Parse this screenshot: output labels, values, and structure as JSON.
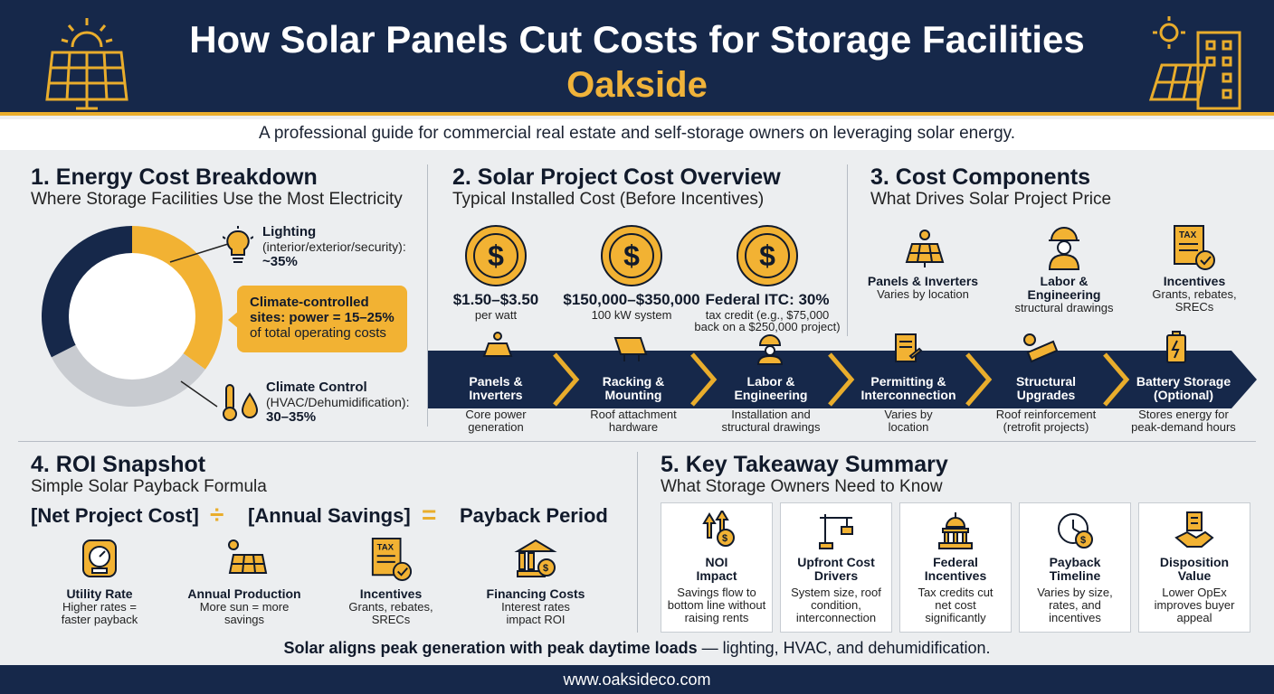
{
  "header": {
    "title": "How Solar Panels Cut Costs for Storage Facilities",
    "brand": "Oakside"
  },
  "tagline": "A professional guide for commercial real estate and self-storage owners on leveraging solar energy.",
  "section1": {
    "title": "1. Energy Cost Breakdown",
    "subtitle": "Where Storage Facilities Use the Most Electricity",
    "lighting": {
      "label": "Lighting",
      "detail": "(interior/exterior/security):",
      "value": "~35%"
    },
    "climate": {
      "label": "Climate Control",
      "detail": "(HVAC/Dehumidification):",
      "value": "30–35%"
    },
    "callout": {
      "line1": "Climate-controlled",
      "line2": "sites: power = 15–25%",
      "line3": "of total operating costs"
    },
    "colors": {
      "lighting": "#f2b233",
      "climate": "#c8cbd0",
      "other": "#16284a"
    }
  },
  "chart_data": {
    "type": "pie",
    "categories": [
      "Lighting",
      "Climate Control",
      "Other"
    ],
    "values": [
      35,
      32.5,
      32.5
    ],
    "colors": [
      "#f2b233",
      "#c8cbd0",
      "#16284a"
    ]
  },
  "section2": {
    "title": "2. Solar Project Cost Overview",
    "subtitle": "Typical Installed Cost (Before Incentives)",
    "coins": [
      {
        "value": "$1.50–$3.50",
        "sub1": "per watt",
        "sub2": ""
      },
      {
        "value": "$150,000–$350,000",
        "sub1": "100 kW system",
        "sub2": ""
      },
      {
        "value": "Federal ITC: 30%",
        "sub1": "tax credit (e.g., $75,000",
        "sub2": "back on a $250,000 project)"
      }
    ]
  },
  "section3": {
    "title": "3. Cost Components",
    "subtitle": "What Drives Solar Project Price",
    "items": [
      {
        "title": "Panels & Inverters",
        "title2": "",
        "desc1": "Varies by location",
        "desc2": ""
      },
      {
        "title": "Labor &",
        "title2": "Engineering",
        "desc1": "structural drawings",
        "desc2": ""
      },
      {
        "title": "Incentives",
        "title2": "",
        "desc1": "Grants, rebates,",
        "desc2": "SRECs"
      }
    ]
  },
  "steps": [
    {
      "l1": "Panels &",
      "l2": "Inverters",
      "d1": "Core power",
      "d2": "generation"
    },
    {
      "l1": "Racking &",
      "l2": "Mounting",
      "d1": "Roof attachment",
      "d2": "hardware"
    },
    {
      "l1": "Labor &",
      "l2": "Engineering",
      "d1": "Installation and",
      "d2": "structural drawings"
    },
    {
      "l1": "Permitting &",
      "l2": "Interconnection",
      "d1": "Varies by",
      "d2": "location"
    },
    {
      "l1": "Structural",
      "l2": "Upgrades",
      "d1": "Roof reinforcement",
      "d2": "(retrofit projects)"
    },
    {
      "l1": "Battery Storage",
      "l2": "(Optional)",
      "d1": "Stores energy for",
      "d2": "peak-demand hours"
    }
  ],
  "section4": {
    "title": "4. ROI Snapshot",
    "subtitle": "Simple Solar Payback Formula",
    "formula": {
      "a": "[Net Project Cost]",
      "div": "÷",
      "b": "[Annual Savings]",
      "eq": "=",
      "c": "Payback Period"
    },
    "factors": [
      {
        "title": "Utility Rate",
        "d1": "Higher rates =",
        "d2": "faster payback"
      },
      {
        "title": "Annual Production",
        "d1": "More sun = more",
        "d2": "savings"
      },
      {
        "title": "Incentives",
        "d1": "Grants, rebates,",
        "d2": "SRECs"
      },
      {
        "title": "Financing Costs",
        "d1": "Interest rates",
        "d2": "impact ROI"
      }
    ]
  },
  "section5": {
    "title": "5. Key Takeaway Summary",
    "subtitle": "What Storage Owners Need to Know",
    "cards": [
      {
        "t1": "NOI",
        "t2": "Impact",
        "d1": "Savings flow to",
        "d2": "bottom line without",
        "d3": "raising rents"
      },
      {
        "t1": "Upfront Cost",
        "t2": "Drivers",
        "d1": "System size, roof",
        "d2": "condition,",
        "d3": "interconnection"
      },
      {
        "t1": "Federal",
        "t2": "Incentives",
        "d1": "Tax credits cut",
        "d2": "net cost",
        "d3": "significantly"
      },
      {
        "t1": "Payback",
        "t2": "Timeline",
        "d1": "Varies by size,",
        "d2": "rates, and",
        "d3": "incentives"
      },
      {
        "t1": "Disposition",
        "t2": "Value",
        "d1": "Lower OpEx",
        "d2": "improves buyer",
        "d3": "appeal"
      }
    ]
  },
  "summary": {
    "bold": "Solar aligns peak generation with peak daytime loads",
    "rest": " — lighting, HVAC, and dehumidification."
  },
  "footer": {
    "url": "www.oaksideco.com"
  },
  "icons": [
    "solar-panel-sun-icon",
    "building-solar-icon",
    "lightbulb-icon",
    "thermometer-icon",
    "droplet-icon",
    "dollar-coin-icon",
    "worker-icon",
    "tax-form-icon",
    "meter-icon",
    "bank-icon",
    "money-up-icon",
    "crane-icon",
    "capitol-icon",
    "clock-dollar-icon",
    "handshake-icon",
    "battery-icon",
    "document-icon",
    "gear-panel-icon"
  ]
}
